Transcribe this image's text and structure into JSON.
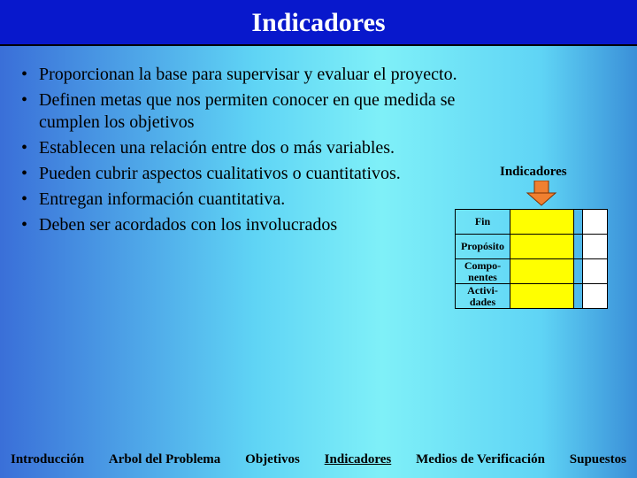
{
  "title": "Indicadores",
  "bullets": [
    "Proporcionan la base para supervisar y evaluar el proyecto.",
    "Definen metas que nos permiten conocer en que medida se cumplen los objetivos",
    "Establecen una relación entre dos o más variables.",
    "Pueden cubrir aspectos cualitativos o cuantitativos.",
    "Entregan información cuantitativa.",
    "Deben ser acordados con los involucrados"
  ],
  "side": {
    "label": "Indicadores",
    "arrow_fill": "#f08030",
    "arrow_stroke": "#803000",
    "rows": [
      "Fin",
      "Propósito",
      "Compo-\nnentes",
      "Activi-\ndades"
    ],
    "col1_bg": "#ffff00",
    "col3_bg": "#ffffff"
  },
  "nav": {
    "items": [
      "Introducción",
      "Arbol del Problema",
      "Objetivos",
      "Indicadores",
      "Medios de Verificación",
      "Supuestos"
    ],
    "active_index": 3
  },
  "colors": {
    "title_bg": "#0818cc",
    "title_fg": "#ffffff",
    "body_text": "#000000"
  }
}
